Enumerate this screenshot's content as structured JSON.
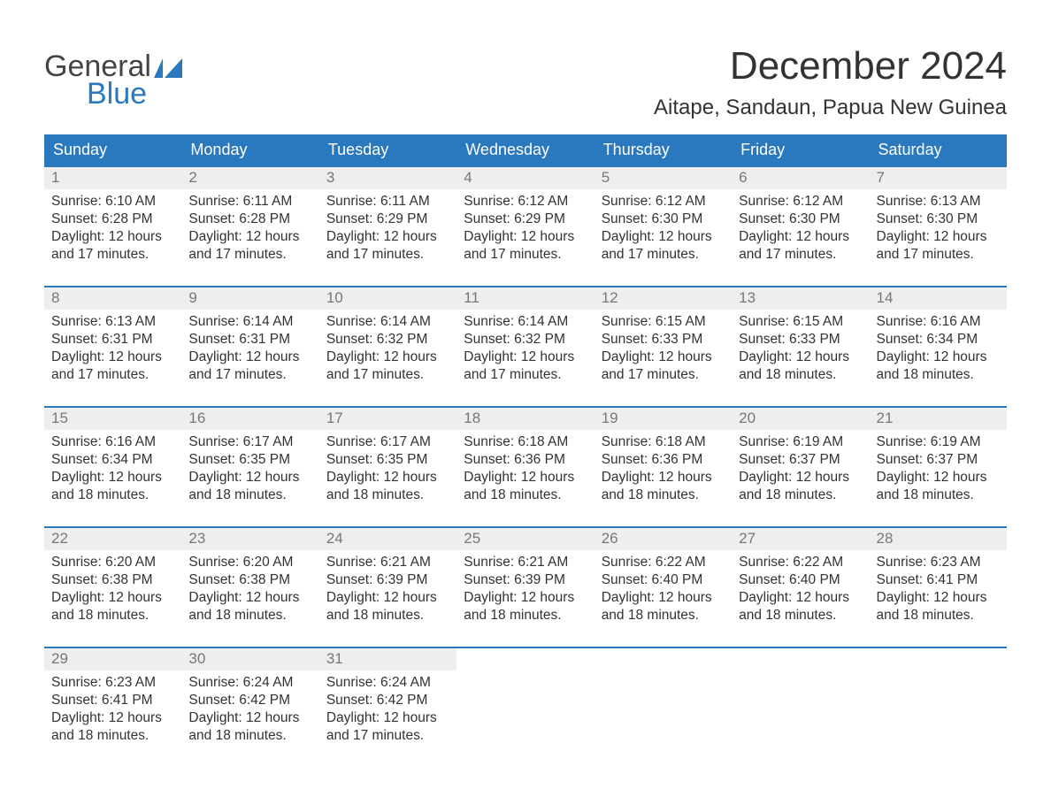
{
  "logo": {
    "text_general": "General",
    "text_blue": "Blue",
    "flag_color": "#2a78bd"
  },
  "header": {
    "month_title": "December 2024",
    "location": "Aitape, Sandaun, Papua New Guinea"
  },
  "colors": {
    "header_bg": "#2a78bd",
    "header_text": "#ffffff",
    "daynum_bg": "#eeeeee",
    "daynum_text": "#777777",
    "body_text": "#333333",
    "row_border": "#2a78bd",
    "page_bg": "#ffffff"
  },
  "typography": {
    "month_title_size_pt": 33,
    "location_size_pt": 18,
    "dayheader_size_pt": 14,
    "daynum_size_pt": 13,
    "body_size_pt": 12
  },
  "day_headers": [
    "Sunday",
    "Monday",
    "Tuesday",
    "Wednesday",
    "Thursday",
    "Friday",
    "Saturday"
  ],
  "labels": {
    "sunrise": "Sunrise:",
    "sunset": "Sunset:",
    "daylight": "Daylight:"
  },
  "weeks": [
    [
      {
        "n": "1",
        "sunrise": "6:10 AM",
        "sunset": "6:28 PM",
        "daylight": "12 hours and 17 minutes."
      },
      {
        "n": "2",
        "sunrise": "6:11 AM",
        "sunset": "6:28 PM",
        "daylight": "12 hours and 17 minutes."
      },
      {
        "n": "3",
        "sunrise": "6:11 AM",
        "sunset": "6:29 PM",
        "daylight": "12 hours and 17 minutes."
      },
      {
        "n": "4",
        "sunrise": "6:12 AM",
        "sunset": "6:29 PM",
        "daylight": "12 hours and 17 minutes."
      },
      {
        "n": "5",
        "sunrise": "6:12 AM",
        "sunset": "6:30 PM",
        "daylight": "12 hours and 17 minutes."
      },
      {
        "n": "6",
        "sunrise": "6:12 AM",
        "sunset": "6:30 PM",
        "daylight": "12 hours and 17 minutes."
      },
      {
        "n": "7",
        "sunrise": "6:13 AM",
        "sunset": "6:30 PM",
        "daylight": "12 hours and 17 minutes."
      }
    ],
    [
      {
        "n": "8",
        "sunrise": "6:13 AM",
        "sunset": "6:31 PM",
        "daylight": "12 hours and 17 minutes."
      },
      {
        "n": "9",
        "sunrise": "6:14 AM",
        "sunset": "6:31 PM",
        "daylight": "12 hours and 17 minutes."
      },
      {
        "n": "10",
        "sunrise": "6:14 AM",
        "sunset": "6:32 PM",
        "daylight": "12 hours and 17 minutes."
      },
      {
        "n": "11",
        "sunrise": "6:14 AM",
        "sunset": "6:32 PM",
        "daylight": "12 hours and 17 minutes."
      },
      {
        "n": "12",
        "sunrise": "6:15 AM",
        "sunset": "6:33 PM",
        "daylight": "12 hours and 17 minutes."
      },
      {
        "n": "13",
        "sunrise": "6:15 AM",
        "sunset": "6:33 PM",
        "daylight": "12 hours and 18 minutes."
      },
      {
        "n": "14",
        "sunrise": "6:16 AM",
        "sunset": "6:34 PM",
        "daylight": "12 hours and 18 minutes."
      }
    ],
    [
      {
        "n": "15",
        "sunrise": "6:16 AM",
        "sunset": "6:34 PM",
        "daylight": "12 hours and 18 minutes."
      },
      {
        "n": "16",
        "sunrise": "6:17 AM",
        "sunset": "6:35 PM",
        "daylight": "12 hours and 18 minutes."
      },
      {
        "n": "17",
        "sunrise": "6:17 AM",
        "sunset": "6:35 PM",
        "daylight": "12 hours and 18 minutes."
      },
      {
        "n": "18",
        "sunrise": "6:18 AM",
        "sunset": "6:36 PM",
        "daylight": "12 hours and 18 minutes."
      },
      {
        "n": "19",
        "sunrise": "6:18 AM",
        "sunset": "6:36 PM",
        "daylight": "12 hours and 18 minutes."
      },
      {
        "n": "20",
        "sunrise": "6:19 AM",
        "sunset": "6:37 PM",
        "daylight": "12 hours and 18 minutes."
      },
      {
        "n": "21",
        "sunrise": "6:19 AM",
        "sunset": "6:37 PM",
        "daylight": "12 hours and 18 minutes."
      }
    ],
    [
      {
        "n": "22",
        "sunrise": "6:20 AM",
        "sunset": "6:38 PM",
        "daylight": "12 hours and 18 minutes."
      },
      {
        "n": "23",
        "sunrise": "6:20 AM",
        "sunset": "6:38 PM",
        "daylight": "12 hours and 18 minutes."
      },
      {
        "n": "24",
        "sunrise": "6:21 AM",
        "sunset": "6:39 PM",
        "daylight": "12 hours and 18 minutes."
      },
      {
        "n": "25",
        "sunrise": "6:21 AM",
        "sunset": "6:39 PM",
        "daylight": "12 hours and 18 minutes."
      },
      {
        "n": "26",
        "sunrise": "6:22 AM",
        "sunset": "6:40 PM",
        "daylight": "12 hours and 18 minutes."
      },
      {
        "n": "27",
        "sunrise": "6:22 AM",
        "sunset": "6:40 PM",
        "daylight": "12 hours and 18 minutes."
      },
      {
        "n": "28",
        "sunrise": "6:23 AM",
        "sunset": "6:41 PM",
        "daylight": "12 hours and 18 minutes."
      }
    ],
    [
      {
        "n": "29",
        "sunrise": "6:23 AM",
        "sunset": "6:41 PM",
        "daylight": "12 hours and 18 minutes."
      },
      {
        "n": "30",
        "sunrise": "6:24 AM",
        "sunset": "6:42 PM",
        "daylight": "12 hours and 18 minutes."
      },
      {
        "n": "31",
        "sunrise": "6:24 AM",
        "sunset": "6:42 PM",
        "daylight": "12 hours and 17 minutes."
      },
      null,
      null,
      null,
      null
    ]
  ]
}
